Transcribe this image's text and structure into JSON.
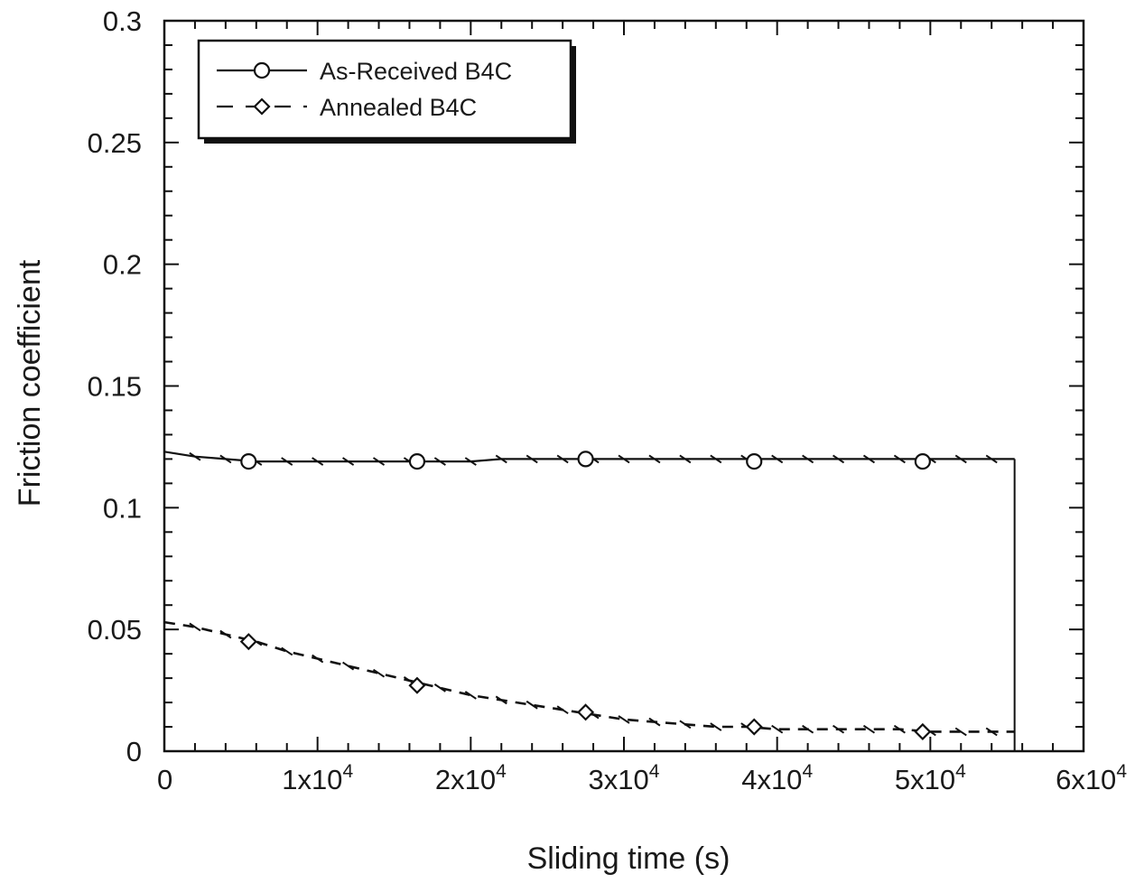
{
  "chart_data": {
    "type": "line",
    "title": "",
    "xlabel": "Sliding time (s)",
    "ylabel": "Friction coefficient",
    "xlim": [
      0,
      60000
    ],
    "ylim": [
      0,
      0.3
    ],
    "x_ticks": [
      {
        "value": 0,
        "label": "0",
        "exp": ""
      },
      {
        "value": 10000,
        "label": "1x10",
        "exp": "4"
      },
      {
        "value": 20000,
        "label": "2x10",
        "exp": "4"
      },
      {
        "value": 30000,
        "label": "3x10",
        "exp": "4"
      },
      {
        "value": 40000,
        "label": "4x10",
        "exp": "4"
      },
      {
        "value": 50000,
        "label": "5x10",
        "exp": "4"
      },
      {
        "value": 60000,
        "label": "6x10",
        "exp": "4"
      }
    ],
    "y_ticks": [
      {
        "value": 0,
        "label": "0"
      },
      {
        "value": 0.05,
        "label": "0.05"
      },
      {
        "value": 0.1,
        "label": "0.1"
      },
      {
        "value": 0.15,
        "label": "0.15"
      },
      {
        "value": 0.2,
        "label": "0.2"
      },
      {
        "value": 0.25,
        "label": "0.25"
      },
      {
        "value": 0.3,
        "label": "0.3"
      }
    ],
    "grid": false,
    "legend_position": "top-left",
    "series": [
      {
        "name": "As-Received B4C",
        "line_style": "solid",
        "marker": "circle",
        "color": "#111111",
        "x": [
          0,
          2000,
          4000,
          6000,
          8000,
          10000,
          12000,
          14000,
          16000,
          18000,
          20000,
          22000,
          24000,
          26000,
          28000,
          30000,
          32000,
          34000,
          36000,
          38000,
          40000,
          42000,
          44000,
          46000,
          48000,
          50000,
          52000,
          54000,
          55500
        ],
        "y": [
          0.123,
          0.121,
          0.12,
          0.119,
          0.119,
          0.119,
          0.119,
          0.119,
          0.119,
          0.119,
          0.119,
          0.12,
          0.12,
          0.12,
          0.12,
          0.12,
          0.12,
          0.12,
          0.12,
          0.12,
          0.12,
          0.12,
          0.12,
          0.12,
          0.12,
          0.12,
          0.12,
          0.12,
          0.12
        ],
        "markers_x": [
          5500,
          16500,
          27500,
          38500,
          49500
        ],
        "markers_y": [
          0.119,
          0.119,
          0.12,
          0.119,
          0.119
        ]
      },
      {
        "name": "Annealed B4C",
        "line_style": "dashed",
        "marker": "diamond",
        "color": "#111111",
        "x": [
          0,
          2000,
          4000,
          6000,
          8000,
          10000,
          12000,
          14000,
          16000,
          18000,
          20000,
          22000,
          24000,
          26000,
          28000,
          30000,
          32000,
          34000,
          36000,
          38000,
          40000,
          42000,
          44000,
          46000,
          48000,
          50000,
          52000,
          54000,
          55500
        ],
        "y": [
          0.053,
          0.051,
          0.048,
          0.045,
          0.041,
          0.038,
          0.035,
          0.032,
          0.029,
          0.026,
          0.023,
          0.021,
          0.019,
          0.017,
          0.015,
          0.013,
          0.012,
          0.011,
          0.01,
          0.01,
          0.009,
          0.009,
          0.009,
          0.009,
          0.009,
          0.008,
          0.008,
          0.008,
          0.008
        ],
        "markers_x": [
          5500,
          16500,
          27500,
          38500,
          49500
        ],
        "markers_y": [
          0.045,
          0.027,
          0.016,
          0.01,
          0.008
        ]
      }
    ],
    "annotations": []
  }
}
